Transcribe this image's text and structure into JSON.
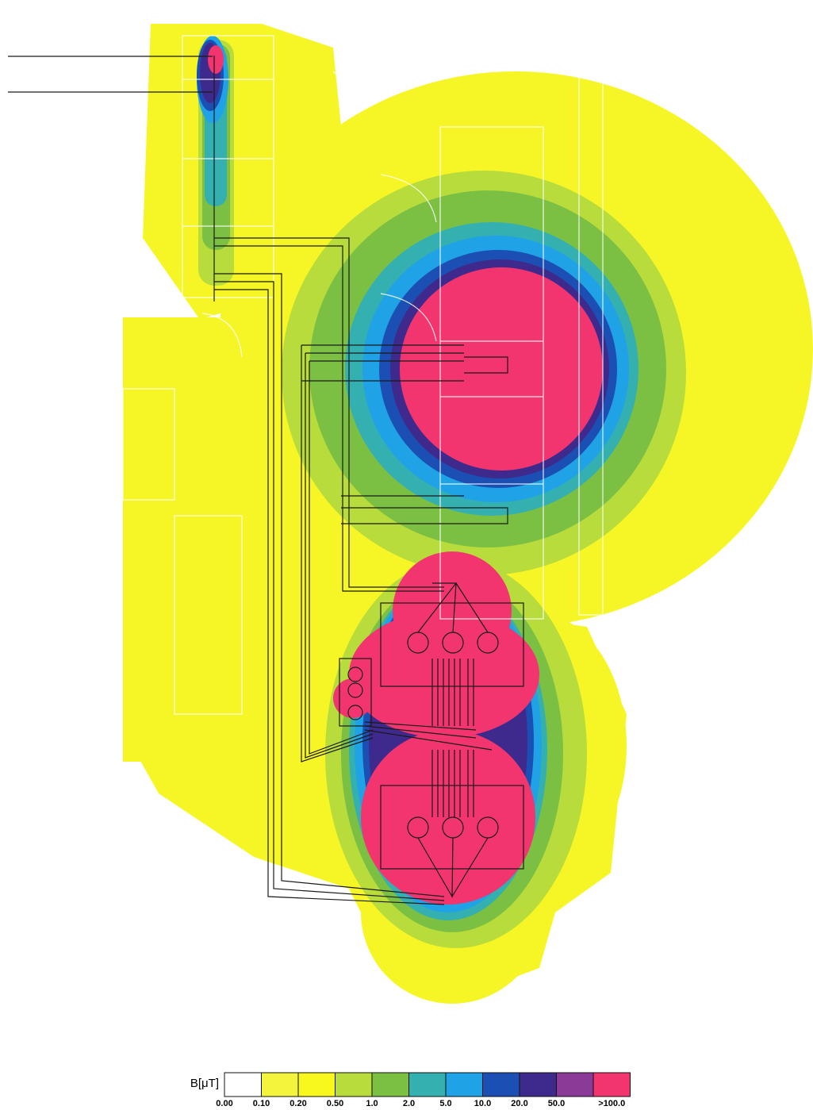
{
  "legend": {
    "title": "B[μT]",
    "items": [
      {
        "label": "0.00",
        "color": "#ffffff"
      },
      {
        "label": "0.10",
        "color": "#f4f43c"
      },
      {
        "label": "0.20",
        "color": "#f8f81e"
      },
      {
        "label": "0.50",
        "color": "#b8dc3c"
      },
      {
        "label": "1.0",
        "color": "#7cc043"
      },
      {
        "label": "2.0",
        "color": "#35b0b0"
      },
      {
        "label": "5.0",
        "color": "#1fa2e6"
      },
      {
        "label": "10.0",
        "color": "#1c4fb4"
      },
      {
        "label": "20.0",
        "color": "#3d2a8c"
      },
      {
        "label": "50.0",
        "color": "#8c3a98"
      },
      {
        "label": ">100.0",
        "color": "#f2356e"
      }
    ]
  }
}
